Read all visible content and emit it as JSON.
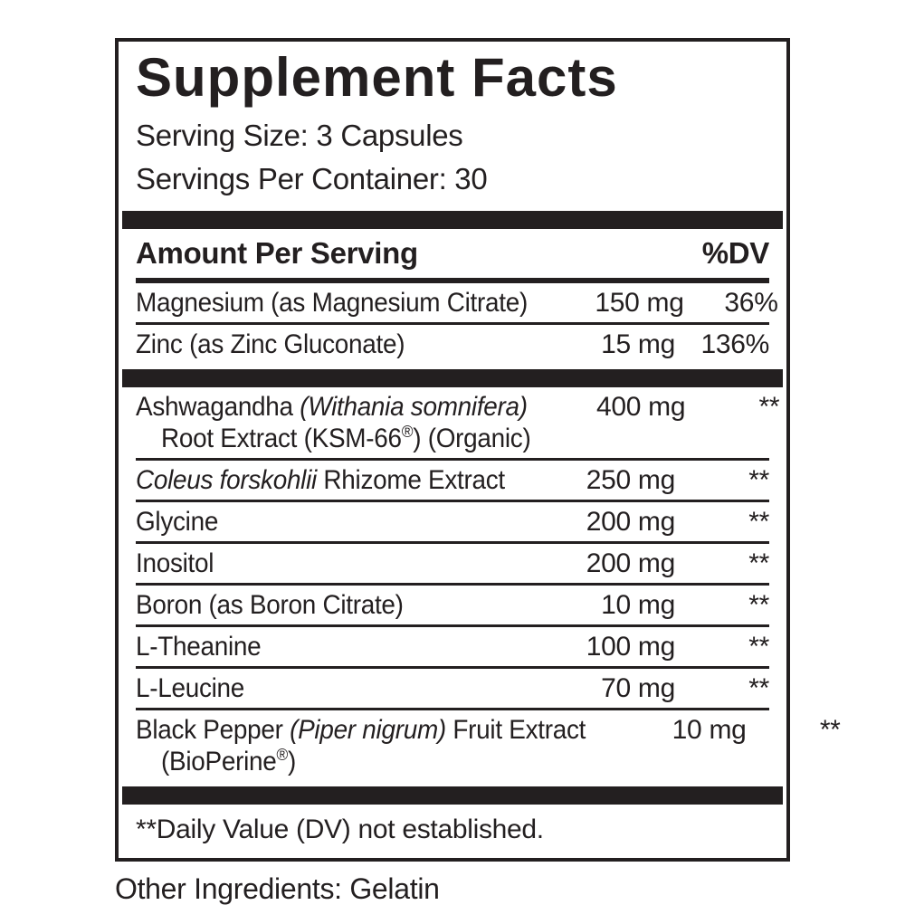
{
  "colors": {
    "ink": "#231f20",
    "background": "#ffffff"
  },
  "label": {
    "title": "Supplement Facts",
    "serving_size": "Serving Size: 3 Capsules",
    "servings_per_container": "Servings Per Container: 30",
    "header": {
      "amount_label": "Amount Per Serving",
      "dv_label": "%DV"
    },
    "rows": [
      {
        "name_pre": "Magnesium (as Magnesium Citrate)",
        "name_italic": "",
        "name_post": "",
        "amount": "150 mg",
        "dv": "36%"
      },
      {
        "name_pre": "Zinc (as Zinc Gluconate)",
        "name_italic": "",
        "name_post": "",
        "amount": "15 mg",
        "dv": "136%"
      },
      {
        "name_pre": "Ashwagandha ",
        "name_italic": "(Withania somnifera)",
        "name_post": "",
        "line2_reg": "Root Extract (KSM-66",
        "line2_sup": "®",
        "line2_post": ") (Organic)",
        "amount": "400 mg",
        "dv": "**"
      },
      {
        "name_pre": "",
        "name_italic": "Coleus forskohlii",
        "name_post": " Rhizome Extract",
        "amount": "250 mg",
        "dv": "**"
      },
      {
        "name_pre": "Glycine",
        "name_italic": "",
        "name_post": "",
        "amount": "200 mg",
        "dv": "**"
      },
      {
        "name_pre": "Inositol",
        "name_italic": "",
        "name_post": "",
        "amount": "200 mg",
        "dv": "**"
      },
      {
        "name_pre": "Boron (as Boron Citrate)",
        "name_italic": "",
        "name_post": "",
        "amount": "10 mg",
        "dv": "**"
      },
      {
        "name_pre": "L-Theanine",
        "name_italic": "",
        "name_post": "",
        "amount": "100 mg",
        "dv": "**"
      },
      {
        "name_pre": "L-Leucine",
        "name_italic": "",
        "name_post": "",
        "amount": "70 mg",
        "dv": "**"
      },
      {
        "name_pre": "Black Pepper ",
        "name_italic": "(Piper nigrum)",
        "name_post": " Fruit Extract",
        "line2_reg": "(BioPerine",
        "line2_sup": "®",
        "line2_post": ")",
        "amount": "10 mg",
        "dv": "**"
      }
    ],
    "footnote": "**Daily Value (DV) not established.",
    "other_ingredients": "Other Ingredients: Gelatin"
  }
}
